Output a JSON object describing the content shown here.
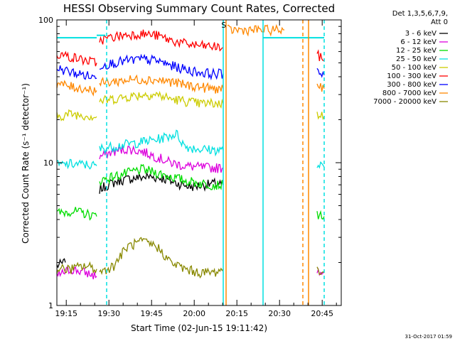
{
  "chart_data": {
    "type": "line",
    "title": "HESSI Observing Summary Count Rates, Corrected",
    "xlabel": "Start Time (02-Jun-15 19:11:42)",
    "ylabel": "Corrected Count Rate (s⁻¹ detector⁻¹)",
    "y_scale": "log",
    "ylim": [
      1,
      100
    ],
    "y_ticks": [
      "1",
      "10",
      "100"
    ],
    "x_ticks": [
      "19:15",
      "19:30",
      "19:45",
      "20:00",
      "20:15",
      "20:30",
      "20:45"
    ],
    "x_tick_minutes": [
      3.3,
      18.3,
      33.3,
      48.3,
      63.3,
      78.3,
      93.3
    ],
    "xlim_minutes": [
      0,
      100
    ],
    "legend_header": [
      "Det 1,3,5,6,7,9,",
      "Att 0"
    ],
    "legend_placement": "right",
    "series": [
      {
        "name": "3 - 6 keV",
        "color": "#000000",
        "segments": [
          {
            "t": [
              0,
              3
            ],
            "y": [
              1.9,
              2.0
            ]
          },
          {
            "t": [
              15,
              18,
              22,
              27,
              32,
              37,
              42,
              47,
              52,
              57,
              58.5
            ],
            "y": [
              6.5,
              7.0,
              7.5,
              7.8,
              8.0,
              7.8,
              7.2,
              6.8,
              7.0,
              7.2,
              7.0
            ]
          }
        ]
      },
      {
        "name": "6 - 12 keV",
        "color": "#dd00dd",
        "segments": [
          {
            "t": [
              0,
              5,
              10,
              14
            ],
            "y": [
              1.6,
              1.8,
              1.7,
              1.6
            ]
          },
          {
            "t": [
              15,
              20,
              25,
              30,
              35,
              40,
              45,
              50,
              55,
              58.5
            ],
            "y": [
              11.0,
              12.0,
              12.5,
              12.0,
              11.0,
              10.0,
              9.5,
              9.3,
              9.2,
              9.2
            ]
          },
          {
            "t": [
              91.5,
              94
            ],
            "y": [
              1.8,
              1.7
            ]
          }
        ]
      },
      {
        "name": "12 - 25 keV",
        "color": "#00dd00",
        "segments": [
          {
            "t": [
              0,
              5,
              10,
              14
            ],
            "y": [
              4.4,
              4.6,
              4.4,
              4.2
            ]
          },
          {
            "t": [
              15,
              20,
              25,
              30,
              35,
              40,
              45,
              50,
              55,
              58.5
            ],
            "y": [
              7.5,
              8.0,
              8.5,
              9.0,
              8.5,
              8.0,
              7.5,
              7.2,
              7.0,
              7.0
            ]
          },
          {
            "t": [
              91.5,
              94
            ],
            "y": [
              4.4,
              4.2
            ]
          }
        ]
      },
      {
        "name": "25 - 50 keV",
        "color": "#00e0e0",
        "segments": [
          {
            "t": [
              0,
              5,
              10,
              14
            ],
            "y": [
              9.6,
              9.8,
              9.7,
              9.5
            ]
          },
          {
            "t": [
              15,
              20,
              25,
              30,
              35,
              40,
              42,
              45,
              50,
              55,
              58.5
            ],
            "y": [
              12.5,
              13.0,
              13.5,
              14.0,
              14.5,
              15.5,
              16.0,
              13.0,
              12.5,
              12.3,
              12.2
            ]
          },
          {
            "t": [
              91.5,
              94
            ],
            "y": [
              9.6,
              9.3
            ]
          }
        ]
      },
      {
        "name": "50 - 100 keV",
        "color": "#cccc00",
        "segments": [
          {
            "t": [
              0,
              5,
              10,
              14
            ],
            "y": [
              21,
              22,
              21.5,
              21
            ]
          },
          {
            "t": [
              15,
              20,
              25,
              30,
              35,
              40,
              45,
              50,
              55,
              58.5
            ],
            "y": [
              27,
              28,
              29,
              30,
              30,
              28,
              27,
              26,
              26,
              26
            ]
          },
          {
            "t": [
              91.5,
              94
            ],
            "y": [
              22,
              21
            ]
          }
        ]
      },
      {
        "name": "100 - 300 keV",
        "color": "#ff0000",
        "segments": [
          {
            "t": [
              0,
              5,
              10,
              14
            ],
            "y": [
              58,
              55,
              52,
              50
            ]
          },
          {
            "t": [
              15,
              20,
              25,
              30,
              35,
              40,
              45,
              50,
              55,
              58.5
            ],
            "y": [
              72,
              76,
              79,
              80,
              78,
              72,
              68,
              66,
              65,
              64
            ]
          },
          {
            "t": [
              91.5,
              94
            ],
            "y": [
              57,
              52
            ]
          }
        ]
      },
      {
        "name": "300 - 800 keV",
        "color": "#0000ff",
        "segments": [
          {
            "t": [
              0,
              5,
              10,
              14
            ],
            "y": [
              46,
              43,
              41,
              39
            ]
          },
          {
            "t": [
              15,
              20,
              25,
              30,
              35,
              40,
              45,
              50,
              55,
              58.5
            ],
            "y": [
              48,
              50,
              52,
              53,
              52,
              48,
              45,
              43,
              42,
              42
            ]
          },
          {
            "t": [
              91.5,
              94
            ],
            "y": [
              45,
              41
            ]
          }
        ]
      },
      {
        "name": "800 - 7000 keV",
        "color": "#ff8800",
        "segments": [
          {
            "t": [
              0,
              5,
              10,
              14
            ],
            "y": [
              36,
              34,
              33,
              32
            ]
          },
          {
            "t": [
              15,
              20,
              25,
              30,
              35,
              40,
              45,
              50,
              55,
              58.5
            ],
            "y": [
              36,
              37,
              38,
              38.5,
              38,
              37,
              35,
              34,
              33,
              33
            ]
          },
          {
            "t": [
              60,
              80
            ],
            "y": [
              85,
              85
            ]
          },
          {
            "t": [
              91.5,
              94
            ],
            "y": [
              36,
              33
            ]
          }
        ]
      },
      {
        "name": "7000 - 20000 keV",
        "color": "#888800",
        "segments": [
          {
            "t": [
              0,
              5,
              10,
              14
            ],
            "y": [
              1.8,
              1.8,
              1.9,
              1.8
            ]
          },
          {
            "t": [
              15,
              20,
              25,
              30,
              35,
              40,
              45,
              50,
              55,
              58.5
            ],
            "y": [
              1.7,
              1.9,
              2.6,
              2.8,
              2.6,
              2.0,
              1.8,
              1.7,
              1.7,
              1.8
            ]
          },
          {
            "t": [
              91.5,
              94
            ],
            "y": [
              1.8,
              1.7
            ]
          }
        ]
      }
    ],
    "annotations": [
      {
        "text": "S",
        "t": 58.7,
        "y": 88,
        "color": "#ff8800"
      }
    ],
    "markers": [
      {
        "t": 0,
        "y": 75,
        "type": "hline-to",
        "t_end": 14,
        "color": "#00e0e0",
        "style": "solid"
      },
      {
        "t": 14,
        "y": 78,
        "type": "hline-to",
        "t_end": 17,
        "color": "#00e0e0",
        "style": "solid"
      },
      {
        "t": 72.5,
        "y": 75,
        "type": "hline-to",
        "t_end": 94,
        "color": "#00e0e0",
        "style": "solid"
      },
      {
        "t": 59.5,
        "type": "vline",
        "color": "#ff8800",
        "style": "solid"
      },
      {
        "t": 58.5,
        "type": "vline",
        "color": "#00e0e0",
        "style": "solid"
      },
      {
        "t": 72.5,
        "type": "vline",
        "color": "#00e0e0",
        "style": "solid"
      },
      {
        "t": 88.5,
        "type": "vline",
        "color": "#ff8800",
        "style": "solid"
      },
      {
        "t": 86.5,
        "type": "vline",
        "color": "#ff8800",
        "style": "dashed"
      },
      {
        "t": 17.5,
        "type": "vline",
        "color": "#00e0e0",
        "style": "dashed"
      },
      {
        "t": 94,
        "type": "vline",
        "color": "#00e0e0",
        "style": "dashed"
      }
    ],
    "footer_stamp": "31-Oct-2017 01:59"
  }
}
